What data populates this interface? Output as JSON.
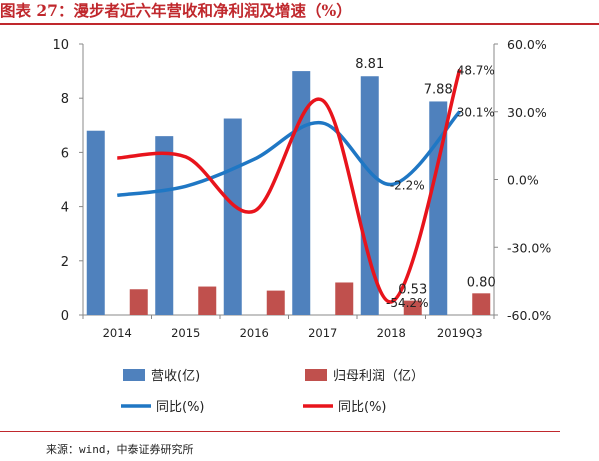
{
  "figure_title": "图表 27：漫步者近六年营收和净利润及增速（%）",
  "source": "来源：wind，中泰证券研究所",
  "colors": {
    "title": "#c0282d",
    "revenue_bar": "#4f81bd",
    "profit_bar": "#c0504d",
    "revenue_growth_line": "#1f77c4",
    "profit_growth_line": "#e8141c",
    "rule": "#c0282d"
  },
  "chart_data": {
    "type": "bar",
    "categories": [
      "2014",
      "2015",
      "2016",
      "2017",
      "2018",
      "2019Q3"
    ],
    "series": [
      {
        "name": "营收(亿)",
        "type": "bar",
        "axis": "left",
        "values": [
          6.8,
          6.6,
          7.25,
          9.0,
          8.81,
          7.88
        ]
      },
      {
        "name": "归母利润（亿）",
        "type": "bar",
        "axis": "left",
        "values": [
          0.95,
          1.05,
          0.9,
          1.2,
          0.53,
          0.8
        ]
      },
      {
        "name": "同比(%)",
        "type": "line",
        "axis": "right",
        "values": [
          -7.0,
          -3.0,
          9.0,
          25.0,
          -2.2,
          30.1
        ]
      },
      {
        "name": "同比(%)",
        "type": "line",
        "axis": "right",
        "values": [
          9.5,
          10.0,
          -14.0,
          35.0,
          -54.2,
          48.7
        ]
      }
    ],
    "data_labels": [
      {
        "series": 0,
        "index": 4,
        "text": "8.81"
      },
      {
        "series": 0,
        "index": 5,
        "text": "7.88"
      },
      {
        "series": 1,
        "index": 4,
        "text": "0.53"
      },
      {
        "series": 1,
        "index": 5,
        "text": "0.80"
      },
      {
        "series": 2,
        "index": 4,
        "text": "-2.2%"
      },
      {
        "series": 2,
        "index": 5,
        "text": "30.1%"
      },
      {
        "series": 3,
        "index": 4,
        "text": "-54.2%"
      },
      {
        "series": 3,
        "index": 5,
        "text": "48.7%"
      }
    ],
    "left_axis": {
      "ylim": [
        0,
        10
      ],
      "ticks": [
        "0",
        "2",
        "4",
        "6",
        "8",
        "10"
      ]
    },
    "right_axis": {
      "ylim": [
        -60,
        60
      ],
      "ticks": [
        "-60.0%",
        "-30.0%",
        "0.0%",
        "30.0%",
        "60.0%"
      ]
    },
    "grid": false,
    "legend_position": "bottom"
  }
}
